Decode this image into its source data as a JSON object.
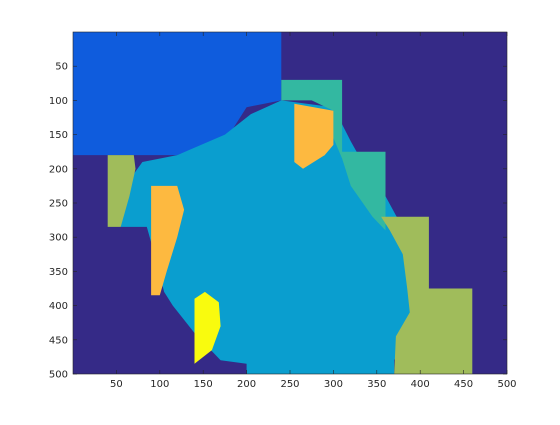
{
  "figure": {
    "background": "#ffffff"
  },
  "chart_data": {
    "type": "heatmap",
    "title": "",
    "xlabel": "",
    "ylabel": "",
    "xlim": [
      0,
      500
    ],
    "ylim": [
      0,
      500
    ],
    "y_reversed": true,
    "grid": false,
    "legend": "none",
    "x_ticks": [
      50,
      100,
      150,
      200,
      250,
      300,
      350,
      400,
      450,
      500
    ],
    "y_ticks": [
      50,
      100,
      150,
      200,
      250,
      300,
      350,
      400,
      450,
      500
    ],
    "background_region": {
      "label": "background",
      "color": "#352A87"
    },
    "regions": [
      {
        "label": "region-top-left",
        "color": "#0F5CDD",
        "polygon": [
          [
            0,
            0
          ],
          [
            240,
            0
          ],
          [
            240,
            100
          ],
          [
            200,
            110
          ],
          [
            180,
            150
          ],
          [
            120,
            180
          ],
          [
            0,
            180
          ]
        ]
      },
      {
        "label": "region-center-large",
        "color": "#0A9ECF",
        "polygon": [
          [
            120,
            180
          ],
          [
            175,
            150
          ],
          [
            205,
            120
          ],
          [
            240,
            100
          ],
          [
            300,
            110
          ],
          [
            320,
            160
          ],
          [
            340,
            205
          ],
          [
            360,
            240
          ],
          [
            375,
            275
          ],
          [
            395,
            320
          ],
          [
            395,
            345
          ],
          [
            400,
            390
          ],
          [
            390,
            430
          ],
          [
            370,
            480
          ],
          [
            370,
            500
          ],
          [
            200,
            500
          ],
          [
            200,
            485
          ],
          [
            170,
            480
          ],
          [
            140,
            440
          ],
          [
            115,
            400
          ],
          [
            105,
            380
          ],
          [
            95,
            330
          ],
          [
            85,
            285
          ],
          [
            55,
            285
          ],
          [
            55,
            255
          ],
          [
            60,
            225
          ],
          [
            80,
            190
          ]
        ]
      },
      {
        "label": "region-right-teal",
        "color": "#33B8A1",
        "polygon": [
          [
            240,
            70
          ],
          [
            310,
            70
          ],
          [
            310,
            175
          ],
          [
            360,
            175
          ],
          [
            360,
            290
          ],
          [
            345,
            270
          ],
          [
            320,
            225
          ],
          [
            310,
            185
          ],
          [
            300,
            155
          ],
          [
            300,
            115
          ],
          [
            275,
            100
          ],
          [
            240,
            100
          ]
        ]
      },
      {
        "label": "region-orange-top",
        "color": "#FDB940",
        "polygon": [
          [
            255,
            105
          ],
          [
            300,
            115
          ],
          [
            300,
            165
          ],
          [
            290,
            180
          ],
          [
            265,
            200
          ],
          [
            255,
            190
          ],
          [
            255,
            145
          ]
        ]
      },
      {
        "label": "region-left-olive",
        "color": "#A0BC5B",
        "polygon": [
          [
            40,
            180
          ],
          [
            70,
            180
          ],
          [
            72,
            200
          ],
          [
            65,
            240
          ],
          [
            55,
            285
          ],
          [
            40,
            285
          ]
        ]
      },
      {
        "label": "region-right-olive-upper",
        "color": "#A0BC5B",
        "polygon": [
          [
            355,
            270
          ],
          [
            410,
            270
          ],
          [
            410,
            375
          ],
          [
            385,
            375
          ],
          [
            380,
            325
          ],
          [
            365,
            290
          ]
        ]
      },
      {
        "label": "region-right-olive-lower",
        "color": "#A0BC5B",
        "polygon": [
          [
            385,
            375
          ],
          [
            460,
            375
          ],
          [
            460,
            500
          ],
          [
            370,
            500
          ],
          [
            372,
            445
          ],
          [
            388,
            410
          ]
        ]
      },
      {
        "label": "region-orange-left",
        "color": "#FDB940",
        "polygon": [
          [
            90,
            225
          ],
          [
            120,
            225
          ],
          [
            128,
            260
          ],
          [
            120,
            300
          ],
          [
            108,
            350
          ],
          [
            100,
            385
          ],
          [
            90,
            385
          ]
        ]
      },
      {
        "label": "region-yellow-bottom",
        "color": "#F9FB0E",
        "polygon": [
          [
            140,
            390
          ],
          [
            152,
            380
          ],
          [
            168,
            395
          ],
          [
            170,
            430
          ],
          [
            160,
            465
          ],
          [
            140,
            485
          ]
        ]
      }
    ]
  }
}
